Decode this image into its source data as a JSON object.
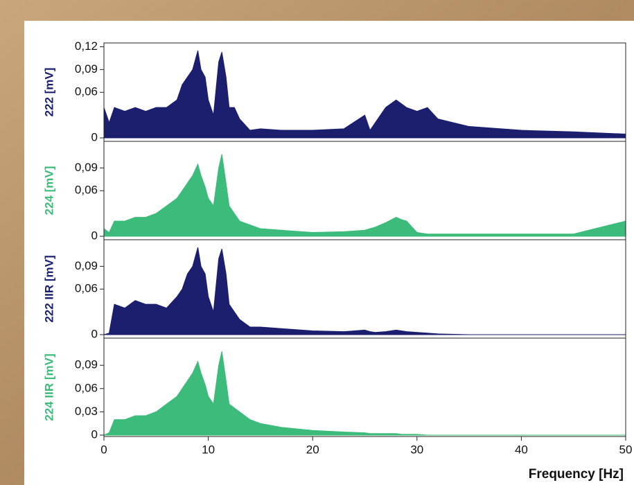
{
  "chart_data": [
    {
      "type": "area",
      "ylabel": "222 [mV]",
      "color": "#1b1f6e",
      "x": [
        0,
        0.5,
        1,
        2,
        3,
        4,
        5,
        6,
        7,
        7.5,
        8,
        8.5,
        9,
        9.3,
        9.7,
        10,
        10.5,
        11,
        11.3,
        11.7,
        12,
        12.5,
        13,
        14,
        15,
        17,
        20,
        23,
        25,
        25.5,
        26,
        27,
        28,
        28.5,
        29,
        30,
        31,
        32,
        35,
        40,
        45,
        50
      ],
      "values": [
        0.04,
        0.02,
        0.04,
        0.035,
        0.04,
        0.035,
        0.04,
        0.04,
        0.05,
        0.07,
        0.08,
        0.09,
        0.115,
        0.09,
        0.08,
        0.05,
        0.03,
        0.1,
        0.113,
        0.08,
        0.04,
        0.04,
        0.025,
        0.01,
        0.012,
        0.01,
        0.01,
        0.012,
        0.03,
        0.01,
        0.02,
        0.04,
        0.05,
        0.045,
        0.04,
        0.035,
        0.04,
        0.025,
        0.015,
        0.01,
        0.008,
        0.005
      ],
      "xlim": [
        0,
        50
      ],
      "ylim": [
        0,
        0.125
      ],
      "yticks": [
        0,
        {
          "value": 0.06,
          "label": "0,06"
        },
        {
          "value": 0.09,
          "label": "0,09"
        },
        {
          "value": 0.12,
          "label": "0,12"
        }
      ]
    },
    {
      "type": "area",
      "ylabel": "224 [mV]",
      "color": "#3dbb7a",
      "x": [
        0,
        0.5,
        1,
        2,
        3,
        4,
        5,
        6,
        7,
        7.5,
        8,
        8.5,
        9,
        9.3,
        9.7,
        10,
        10.5,
        11,
        11.3,
        11.7,
        12,
        12.5,
        13,
        14,
        15,
        17,
        20,
        23,
        25,
        25.5,
        26,
        27,
        28,
        28.5,
        29,
        30,
        31,
        32,
        35,
        40,
        45,
        50
      ],
      "values": [
        0.01,
        0.005,
        0.02,
        0.02,
        0.025,
        0.025,
        0.03,
        0.04,
        0.05,
        0.06,
        0.07,
        0.08,
        0.095,
        0.08,
        0.065,
        0.05,
        0.04,
        0.09,
        0.108,
        0.07,
        0.04,
        0.03,
        0.02,
        0.015,
        0.01,
        0.008,
        0.005,
        0.006,
        0.008,
        0.01,
        0.012,
        0.018,
        0.025,
        0.022,
        0.02,
        0.005,
        0.003,
        0.003,
        0.003,
        0.003,
        0.003,
        0.02
      ],
      "xlim": [
        0,
        50
      ],
      "ylim": [
        0,
        0.125
      ],
      "yticks": [
        0,
        {
          "value": 0.06,
          "label": "0,06"
        },
        {
          "value": 0.09,
          "label": "0,09"
        }
      ]
    },
    {
      "type": "area",
      "ylabel": "222 IIR [mV]",
      "color": "#1b1f6e",
      "x": [
        0,
        0.5,
        1,
        2,
        3,
        4,
        5,
        6,
        7,
        7.5,
        8,
        8.5,
        9,
        9.3,
        9.7,
        10,
        10.5,
        11,
        11.3,
        11.7,
        12,
        12.5,
        13,
        14,
        15,
        17,
        20,
        23,
        25,
        25.5,
        26,
        27,
        28,
        28.5,
        29,
        30,
        31,
        32,
        35,
        40,
        45,
        50
      ],
      "values": [
        0,
        0.002,
        0.04,
        0.035,
        0.045,
        0.04,
        0.04,
        0.035,
        0.05,
        0.06,
        0.08,
        0.09,
        0.115,
        0.09,
        0.08,
        0.05,
        0.03,
        0.1,
        0.113,
        0.08,
        0.04,
        0.03,
        0.02,
        0.01,
        0.01,
        0.008,
        0.005,
        0.004,
        0.006,
        0.004,
        0.003,
        0.004,
        0.006,
        0.005,
        0.004,
        0.003,
        0.002,
        0.001,
        0,
        0,
        0,
        0
      ],
      "xlim": [
        0,
        50
      ],
      "ylim": [
        0,
        0.125
      ],
      "yticks": [
        0,
        {
          "value": 0.06,
          "label": "0,06"
        },
        {
          "value": 0.09,
          "label": "0,09"
        }
      ]
    },
    {
      "type": "area",
      "ylabel": "224 IIR [mV]",
      "color": "#3dbb7a",
      "xlabel": "Frequency [Hz]",
      "x": [
        0,
        0.5,
        1,
        2,
        3,
        4,
        5,
        6,
        7,
        7.5,
        8,
        8.5,
        9,
        9.3,
        9.7,
        10,
        10.5,
        11,
        11.3,
        11.7,
        12,
        12.5,
        13,
        14,
        15,
        17,
        20,
        23,
        25,
        25.5,
        26,
        27,
        28,
        28.5,
        29,
        30,
        31,
        32,
        35,
        40,
        45,
        50
      ],
      "values": [
        0,
        0.003,
        0.02,
        0.02,
        0.025,
        0.025,
        0.03,
        0.04,
        0.05,
        0.06,
        0.07,
        0.08,
        0.095,
        0.08,
        0.065,
        0.05,
        0.04,
        0.09,
        0.108,
        0.07,
        0.04,
        0.035,
        0.03,
        0.02,
        0.015,
        0.01,
        0.006,
        0.004,
        0.003,
        0.002,
        0.002,
        0.002,
        0.002,
        0.001,
        0.001,
        0.001,
        0,
        0,
        0,
        0,
        0,
        0
      ],
      "xlim": [
        0,
        50
      ],
      "ylim": [
        0,
        0.125
      ],
      "yticks": [
        0,
        {
          "value": 0.03,
          "label": "0,03"
        },
        {
          "value": 0.06,
          "label": "0,06"
        },
        {
          "value": 0.09,
          "label": "0,09"
        }
      ],
      "xticks": [
        0,
        10,
        20,
        30,
        40,
        50
      ]
    }
  ]
}
